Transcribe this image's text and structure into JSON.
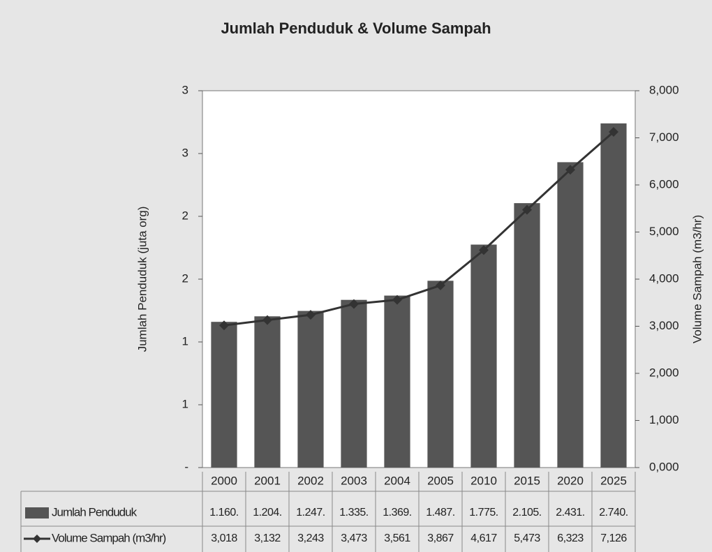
{
  "chart_data": {
    "type": "bar-line",
    "title": "Jumlah Penduduk & Volume Sampah",
    "y_label": "Jumlah Penduduk (juta org)",
    "y2_label": "Volume Sampah (m3/hr)",
    "categories": [
      "2000",
      "2001",
      "2002",
      "2003",
      "2004",
      "2005",
      "2010",
      "2015",
      "2020",
      "2025"
    ],
    "series": [
      {
        "name": "Jumlah Penduduk",
        "type": "bar",
        "color": "#555555",
        "values": [
          1.16,
          1.204,
          1.247,
          1.335,
          1.369,
          1.487,
          1.775,
          2.105,
          2.431,
          2.74
        ],
        "value_labels": [
          "1.160.",
          "1.204.",
          "1.247.",
          "1.335.",
          "1.369.",
          "1.487.",
          "1.775.",
          "2.105.",
          "2.431.",
          "2.740."
        ]
      },
      {
        "name": "Volume Sampah (m3/hr)",
        "type": "line",
        "axis": "y2",
        "color": "#333333",
        "values": [
          3018,
          3132,
          3243,
          3473,
          3561,
          3867,
          4617,
          5473,
          6323,
          7126
        ],
        "value_labels": [
          "3,018",
          "3,132",
          "3,243",
          "3,473",
          "3,561",
          "3,867",
          "4,617",
          "5,473",
          "6,323",
          "7,126"
        ]
      }
    ],
    "ylim": [
      0,
      3
    ],
    "yticks": [
      {
        "value": 0,
        "label": "-"
      },
      {
        "value": 0.5,
        "label": "1"
      },
      1,
      {
        "value": 1.5,
        "label": "2"
      },
      2,
      {
        "value": 2.5,
        "label": "3"
      },
      3
    ],
    "y2lim": [
      0,
      8000
    ],
    "y2ticks": [
      {
        "value": 0,
        "label": "0,000"
      },
      {
        "value": 1000,
        "label": "1,000"
      },
      {
        "value": 2000,
        "label": "2,000"
      },
      {
        "value": 3000,
        "label": "3,000"
      },
      {
        "value": 4000,
        "label": "4,000"
      },
      {
        "value": 5000,
        "label": "5,000"
      },
      {
        "value": 6000,
        "label": "6,000"
      },
      {
        "value": 7000,
        "label": "7,000"
      },
      {
        "value": 8000,
        "label": "8,000"
      }
    ],
    "data_table": true
  }
}
